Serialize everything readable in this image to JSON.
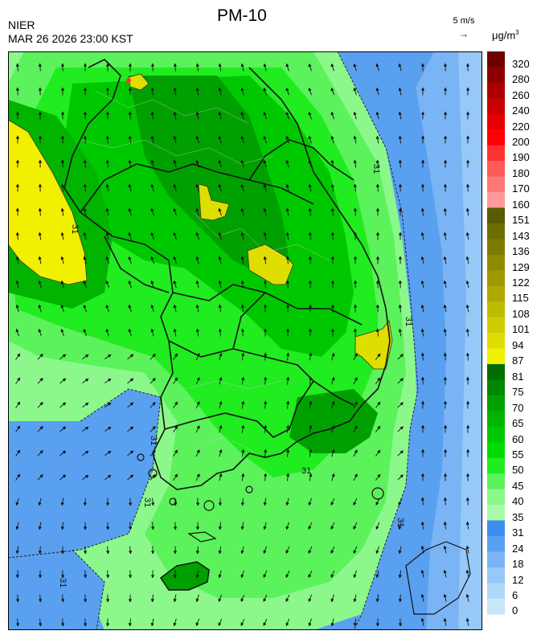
{
  "header": {
    "organization": "NIER",
    "timestamp": "MAR 26 2026 23:00 KST",
    "title": "PM-10"
  },
  "wind_reference": {
    "label": "5 m/s",
    "arrow": "→"
  },
  "legend": {
    "unit_base": "μg/m",
    "unit_exp": "3",
    "levels": [
      {
        "value": "320",
        "color": "#6e0000"
      },
      {
        "value": "280",
        "color": "#8c0000"
      },
      {
        "value": "260",
        "color": "#aa0000"
      },
      {
        "value": "240",
        "color": "#c80000"
      },
      {
        "value": "220",
        "color": "#e60000"
      },
      {
        "value": "200",
        "color": "#ff0000"
      },
      {
        "value": "190",
        "color": "#ff3232"
      },
      {
        "value": "180",
        "color": "#ff5a5a"
      },
      {
        "value": "170",
        "color": "#ff7878"
      },
      {
        "value": "160",
        "color": "#ff9a9a"
      },
      {
        "value": "151",
        "color": "#5a5a00"
      },
      {
        "value": "143",
        "color": "#6e6e00"
      },
      {
        "value": "136",
        "color": "#7e7a00"
      },
      {
        "value": "129",
        "color": "#8e8a00"
      },
      {
        "value": "122",
        "color": "#9e9800"
      },
      {
        "value": "115",
        "color": "#aea800"
      },
      {
        "value": "108",
        "color": "#bebc00"
      },
      {
        "value": "101",
        "color": "#cecc00"
      },
      {
        "value": "94",
        "color": "#dede00"
      },
      {
        "value": "87",
        "color": "#f0f000"
      },
      {
        "value": "81",
        "color": "#006e00"
      },
      {
        "value": "75",
        "color": "#008800"
      },
      {
        "value": "70",
        "color": "#00a000"
      },
      {
        "value": "65",
        "color": "#00b400"
      },
      {
        "value": "60",
        "color": "#00c800"
      },
      {
        "value": "55",
        "color": "#00dc00"
      },
      {
        "value": "50",
        "color": "#20ec20"
      },
      {
        "value": "45",
        "color": "#5cf25c"
      },
      {
        "value": "40",
        "color": "#8cf88c"
      },
      {
        "value": "35",
        "color": "#aafaaa"
      },
      {
        "value": "31",
        "color": "#3d8cf0"
      },
      {
        "value": "24",
        "color": "#5aa0f0"
      },
      {
        "value": "18",
        "color": "#7ab4f4"
      },
      {
        "value": "12",
        "color": "#96c8f8"
      },
      {
        "value": "6",
        "color": "#afd8f8"
      },
      {
        "value": "0",
        "color": "#c8e6fa"
      }
    ]
  },
  "map": {
    "contour_labels": [
      "31",
      "31",
      "31",
      "31",
      "31",
      "31",
      "31",
      "31"
    ]
  }
}
